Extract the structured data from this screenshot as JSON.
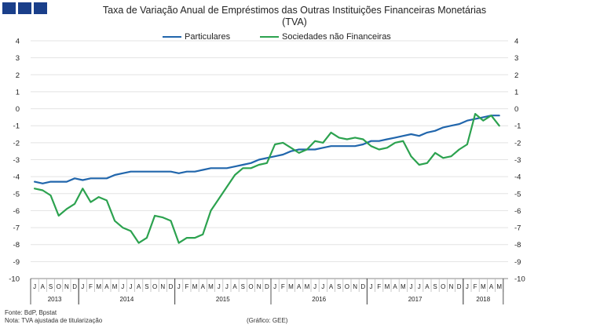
{
  "logo": {
    "color": "#1a3f8a",
    "count": 3
  },
  "header": {
    "title_line1": "Taxa de Variação Anual de Empréstimos das Outras Instituições Financeiras Monetárias",
    "title_line2": "(TVA)"
  },
  "footer": {
    "source": "Fonte: BdP, Bpstat",
    "note": "Nota: TVA ajustada de titularização",
    "credit": "(Gráfico: GEE)"
  },
  "chart_data": {
    "type": "line",
    "title": "Taxa de Variação Anual de Empréstimos das Outras Instituições Financeiras Monetárias (TVA)",
    "ylim": [
      -10,
      4
    ],
    "yticks": [
      4,
      3,
      2,
      1,
      0,
      -1,
      -2,
      -3,
      -4,
      -5,
      -6,
      -7,
      -8,
      -9,
      -10
    ],
    "month_labels": [
      "J",
      "A",
      "S",
      "O",
      "N",
      "D",
      "J",
      "F",
      "M",
      "A",
      "M",
      "J",
      "J",
      "A",
      "S",
      "O",
      "N",
      "D",
      "J",
      "F",
      "M",
      "A",
      "M",
      "J",
      "J",
      "A",
      "S",
      "O",
      "N",
      "D",
      "J",
      "F",
      "M",
      "A",
      "M",
      "J",
      "J",
      "A",
      "S",
      "O",
      "N",
      "D",
      "J",
      "F",
      "M",
      "A",
      "M",
      "J",
      "J",
      "A",
      "S",
      "O",
      "N",
      "D",
      "J",
      "F",
      "M",
      "A",
      "M"
    ],
    "years": [
      {
        "label": "2013",
        "start": 0,
        "count": 6
      },
      {
        "label": "2014",
        "start": 6,
        "count": 12
      },
      {
        "label": "2015",
        "start": 18,
        "count": 12
      },
      {
        "label": "2016",
        "start": 30,
        "count": 12
      },
      {
        "label": "2017",
        "start": 42,
        "count": 12
      },
      {
        "label": "2018",
        "start": 54,
        "count": 5
      }
    ],
    "series": [
      {
        "name": "Particulares",
        "color": "#2166ac",
        "values": [
          -4.3,
          -4.4,
          -4.3,
          -4.3,
          -4.3,
          -4.1,
          -4.2,
          -4.1,
          -4.1,
          -4.1,
          -3.9,
          -3.8,
          -3.7,
          -3.7,
          -3.7,
          -3.7,
          -3.7,
          -3.7,
          -3.8,
          -3.7,
          -3.7,
          -3.6,
          -3.5,
          -3.5,
          -3.5,
          -3.4,
          -3.3,
          -3.2,
          -3.0,
          -2.9,
          -2.8,
          -2.7,
          -2.5,
          -2.4,
          -2.4,
          -2.4,
          -2.3,
          -2.2,
          -2.2,
          -2.2,
          -2.2,
          -2.1,
          -1.9,
          -1.9,
          -1.8,
          -1.7,
          -1.6,
          -1.5,
          -1.6,
          -1.4,
          -1.3,
          -1.1,
          -1.0,
          -0.9,
          -0.7,
          -0.6,
          -0.5,
          -0.4,
          -0.4
        ]
      },
      {
        "name": "Sociedades não Financeiras",
        "color": "#2ca24f",
        "values": [
          -4.7,
          -4.8,
          -5.1,
          -6.3,
          -5.9,
          -5.6,
          -4.7,
          -5.5,
          -5.2,
          -5.4,
          -6.6,
          -7.0,
          -7.2,
          -7.9,
          -7.6,
          -6.3,
          -6.4,
          -6.6,
          -7.9,
          -7.6,
          -7.6,
          -7.4,
          -6.0,
          -5.3,
          -4.6,
          -3.9,
          -3.5,
          -3.5,
          -3.3,
          -3.2,
          -2.1,
          -2.0,
          -2.3,
          -2.6,
          -2.4,
          -1.9,
          -2.0,
          -1.4,
          -1.7,
          -1.8,
          -1.7,
          -1.8,
          -2.2,
          -2.4,
          -2.3,
          -2.0,
          -1.9,
          -2.8,
          -3.3,
          -3.2,
          -2.6,
          -2.9,
          -2.8,
          -2.4,
          -2.1,
          -0.3,
          -0.7,
          -0.4,
          -1.0
        ]
      }
    ]
  }
}
